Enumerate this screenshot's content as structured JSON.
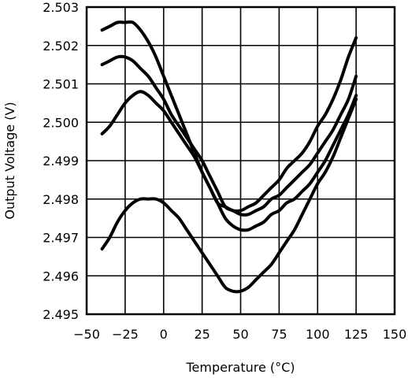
{
  "chart_data": {
    "type": "line",
    "xlabel": "Temperature (°C)",
    "ylabel": "Output Voltage (V)",
    "xlim": [
      -50,
      150
    ],
    "ylim": [
      2.495,
      2.503
    ],
    "grid": true,
    "x_ticks": [
      "−50",
      "−25",
      "0",
      "25",
      "50",
      "75",
      "100",
      "125",
      "150"
    ],
    "y_ticks": [
      "2.495",
      "2.496",
      "2.497",
      "2.498",
      "2.499",
      "2.500",
      "2.501",
      "2.502",
      "2.503"
    ],
    "series": [
      {
        "x": [
          -40,
          -35,
          -30,
          -25,
          -20,
          -15,
          -10,
          -5,
          0,
          5,
          10,
          15,
          20,
          25,
          30,
          35,
          40,
          45,
          50,
          55,
          60,
          65,
          70,
          75,
          80,
          85,
          90,
          95,
          100,
          105,
          110,
          115,
          120,
          125
        ],
        "y": [
          2.5024,
          2.5025,
          2.5026,
          2.5026,
          2.5026,
          2.5024,
          2.5021,
          2.5017,
          2.5012,
          2.5007,
          2.5002,
          2.4997,
          2.4992,
          2.4987,
          2.4983,
          2.4979,
          2.4978,
          2.4977,
          2.4977,
          2.4978,
          2.4979,
          2.4981,
          2.4983,
          2.4985,
          2.4988,
          2.499,
          2.4992,
          2.4995,
          2.4999,
          2.5002,
          2.5006,
          2.5011,
          2.5017,
          2.5022
        ]
      },
      {
        "x": [
          -40,
          -35,
          -30,
          -25,
          -20,
          -15,
          -10,
          -5,
          0,
          5,
          10,
          15,
          20,
          25,
          30,
          35,
          40,
          45,
          50,
          55,
          60,
          65,
          70,
          75,
          80,
          85,
          90,
          95,
          100,
          105,
          110,
          115,
          120,
          125
        ],
        "y": [
          2.5015,
          2.5016,
          2.5017,
          2.5017,
          2.5016,
          2.5014,
          2.5012,
          2.5009,
          2.5006,
          2.5002,
          2.4999,
          2.4996,
          2.4993,
          2.499,
          2.4986,
          2.4982,
          2.4978,
          2.4977,
          2.4976,
          2.4976,
          2.4977,
          2.4978,
          2.498,
          2.4981,
          2.4983,
          2.4985,
          2.4987,
          2.4989,
          2.4992,
          2.4995,
          2.4998,
          2.5002,
          2.5006,
          2.5012
        ]
      },
      {
        "x": [
          -40,
          -35,
          -30,
          -25,
          -20,
          -15,
          -10,
          -5,
          0,
          5,
          10,
          15,
          20,
          25,
          30,
          35,
          40,
          45,
          50,
          55,
          60,
          65,
          70,
          75,
          80,
          85,
          90,
          95,
          100,
          105,
          110,
          115,
          120,
          125
        ],
        "y": [
          2.4997,
          2.4999,
          2.5002,
          2.5005,
          2.5007,
          2.5008,
          2.5007,
          2.5005,
          2.5003,
          2.5,
          2.4997,
          2.4994,
          2.4991,
          2.4987,
          2.4983,
          2.4979,
          2.4975,
          2.4973,
          2.4972,
          2.4972,
          2.4973,
          2.4974,
          2.4976,
          2.4977,
          2.4979,
          2.498,
          2.4982,
          2.4984,
          2.4987,
          2.499,
          2.4994,
          2.4998,
          2.5002,
          2.5007
        ]
      },
      {
        "x": [
          -40,
          -35,
          -30,
          -25,
          -20,
          -15,
          -10,
          -5,
          0,
          5,
          10,
          15,
          20,
          25,
          30,
          35,
          40,
          45,
          50,
          55,
          60,
          65,
          70,
          75,
          80,
          85,
          90,
          95,
          100,
          105,
          110,
          115,
          120,
          125
        ],
        "y": [
          2.4967,
          2.497,
          2.4974,
          2.4977,
          2.4979,
          2.498,
          2.498,
          2.498,
          2.4979,
          2.4977,
          2.4975,
          2.4972,
          2.4969,
          2.4966,
          2.4963,
          2.496,
          2.4957,
          2.4956,
          2.4956,
          2.4957,
          2.4959,
          2.4961,
          2.4963,
          2.4966,
          2.4969,
          2.4972,
          2.4976,
          2.498,
          2.4984,
          2.4987,
          2.4991,
          2.4996,
          2.5001,
          2.5006
        ]
      }
    ]
  }
}
